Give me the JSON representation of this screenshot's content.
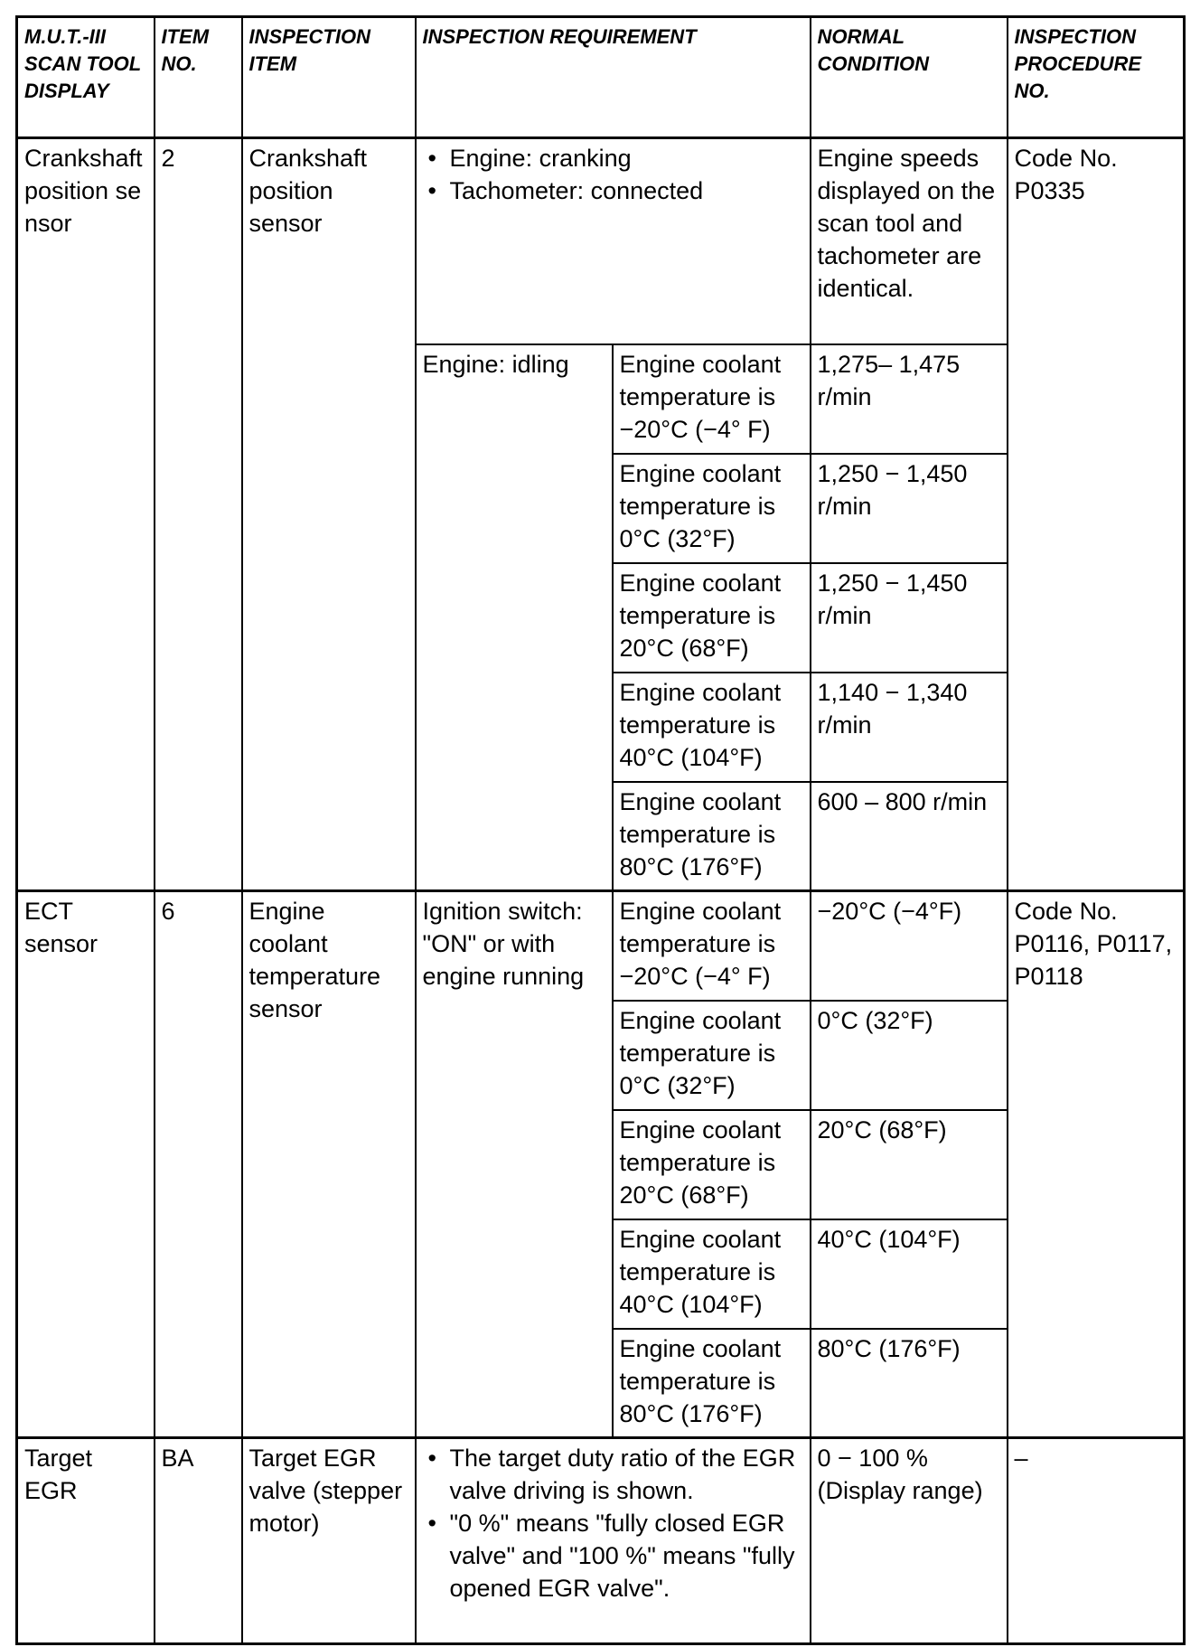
{
  "headers": [
    "M.U.T.-III SCAN TOOL DISPLAY",
    "ITEM NO.",
    "INSPECTION ITEM",
    "INSPECTION REQUIREMENT",
    "NORMAL CONDITION",
    "INSPECTION PROCEDURE NO."
  ],
  "crankshaft": {
    "display": "Crankshaft position sensor",
    "item_no": "2",
    "item": "Crankshaft position sensor",
    "req_bullets": [
      "Engine: cranking",
      "Tachometer: connected"
    ],
    "normal_cranking": "Engine speeds displayed on the scan tool and tachometer are identical.",
    "procedure": "Code No. P0335",
    "idle_condition": "Engine: idling",
    "idle_rows": [
      {
        "condition": "Engine coolant temperature is −20°C (−4° F)",
        "normal": "1,275– 1,475 r/min"
      },
      {
        "condition": "Engine coolant temperature is 0°C (32°F)",
        "normal": "1,250 − 1,450 r/min"
      },
      {
        "condition": "Engine coolant temperature is 20°C (68°F)",
        "normal": "1,250 − 1,450 r/min"
      },
      {
        "condition": "Engine coolant temperature is 40°C (104°F)",
        "normal": "1,140 − 1,340 r/min"
      },
      {
        "condition": "Engine coolant temperature is 80°C (176°F)",
        "normal": "600 – 800 r/min"
      }
    ]
  },
  "ect": {
    "display": "ECT sensor",
    "item_no": "6",
    "item": "Engine coolant temperature sensor",
    "requirement": "Ignition switch: \"ON\" or with engine running",
    "procedure": "Code No. P0116, P0117, P0118",
    "rows": [
      {
        "condition": "Engine coolant temperature is −20°C (−4° F)",
        "normal": "−20°C (−4°F)"
      },
      {
        "condition": "Engine coolant temperature is 0°C (32°F)",
        "normal": "0°C (32°F)"
      },
      {
        "condition": "Engine coolant temperature is 20°C (68°F)",
        "normal": "20°C (68°F)"
      },
      {
        "condition": "Engine coolant temperature is 40°C (104°F)",
        "normal": "40°C (104°F)"
      },
      {
        "condition": "Engine coolant temperature is 80°C (176°F)",
        "normal": " 80°C (176°F)"
      }
    ]
  },
  "egr": {
    "display": "Target EGR",
    "item_no": "BA",
    "item": "Target EGR valve (stepper motor)",
    "req_bullets": [
      "The target duty ratio of the EGR valve driving is shown.",
      "\"0 %\" means \"fully closed EGR valve\" and \"100 %\" means \"fully opened EGR valve\"."
    ],
    "normal": "0 − 100 % (Display range)",
    "procedure": "–"
  }
}
